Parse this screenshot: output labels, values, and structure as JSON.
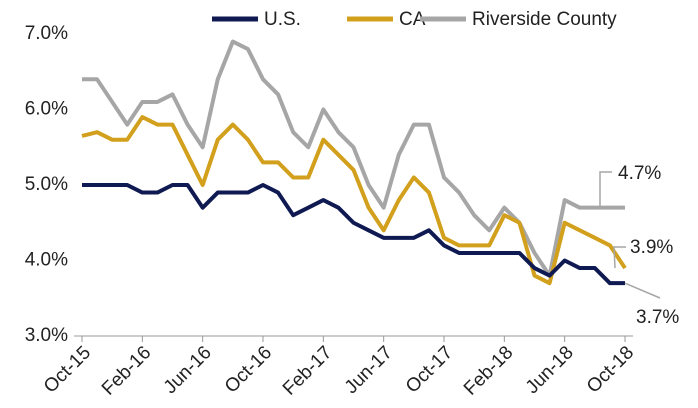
{
  "chart_data": {
    "type": "line",
    "categories": [
      "Oct-15",
      null,
      null,
      null,
      "Feb-16",
      null,
      null,
      null,
      "Jun-16",
      null,
      null,
      null,
      "Oct-16",
      null,
      null,
      null,
      "Feb-17",
      null,
      null,
      null,
      "Jun-17",
      null,
      null,
      null,
      "Oct-17",
      null,
      null,
      null,
      "Feb-18",
      null,
      null,
      null,
      "Jun-18",
      null,
      null,
      null,
      "Oct-18"
    ],
    "series": [
      {
        "name": "U.S.",
        "color": "#101a52",
        "values": [
          5.0,
          5.0,
          5.0,
          5.0,
          4.9,
          4.9,
          5.0,
          5.0,
          4.7,
          4.9,
          4.9,
          4.9,
          5.0,
          4.9,
          4.6,
          4.7,
          4.8,
          4.7,
          4.5,
          4.4,
          4.3,
          4.3,
          4.3,
          4.4,
          4.2,
          4.1,
          4.1,
          4.1,
          4.1,
          4.1,
          3.9,
          3.8,
          4.0,
          3.9,
          3.9,
          3.7,
          3.7
        ]
      },
      {
        "name": "CA",
        "color": "#d2a01c",
        "values": [
          5.65,
          5.7,
          5.6,
          5.6,
          5.9,
          5.8,
          5.8,
          5.4,
          5.0,
          5.6,
          5.8,
          5.6,
          5.3,
          5.3,
          5.1,
          5.1,
          5.6,
          5.4,
          5.2,
          4.7,
          4.4,
          4.8,
          5.1,
          4.9,
          4.3,
          4.2,
          4.2,
          4.2,
          4.6,
          4.5,
          3.8,
          3.7,
          4.5,
          4.4,
          4.3,
          4.2,
          3.9
        ]
      },
      {
        "name": "Riverside County",
        "color": "#a6a6a6",
        "values": [
          6.4,
          6.4,
          6.1,
          5.8,
          6.1,
          6.1,
          6.2,
          5.8,
          5.5,
          6.4,
          6.9,
          6.8,
          6.4,
          6.2,
          5.7,
          5.5,
          6.0,
          5.7,
          5.5,
          5.0,
          4.7,
          5.4,
          5.8,
          5.8,
          5.1,
          4.9,
          4.6,
          4.4,
          4.7,
          4.5,
          4.1,
          3.8,
          4.8,
          4.7,
          4.7,
          4.7,
          4.7
        ]
      }
    ],
    "ylim": [
      3,
      7
    ],
    "yticks": [
      {
        "value": 3,
        "label": "3.0%"
      },
      {
        "value": 4,
        "label": "4.0%"
      },
      {
        "value": 5,
        "label": "5.0%"
      },
      {
        "value": 6,
        "label": "6.0%"
      },
      {
        "value": 7,
        "label": "7.0%"
      }
    ],
    "legend": "top",
    "annotations": [
      "4.7%",
      "3.9%",
      "3.7%"
    ]
  }
}
